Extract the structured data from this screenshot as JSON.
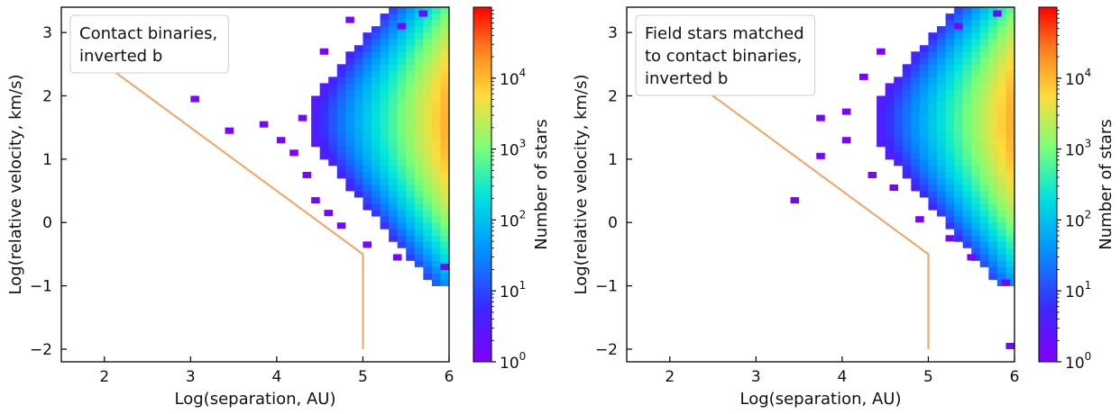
{
  "chart_data": [
    {
      "type": "heatmap",
      "legend_lines": [
        "Contact binaries,",
        "inverted b"
      ],
      "legend_position": "top-left",
      "xlabel": "Log(separation, AU)",
      "ylabel": "Log(relative velocity, km/s)",
      "xlim": [
        1.5,
        6.0
      ],
      "ylim": [
        -2.2,
        3.4
      ],
      "xticks": [
        "2",
        "3",
        "4",
        "5",
        "6"
      ],
      "yticks": [
        "−2",
        "−1",
        "0",
        "1",
        "2",
        "3"
      ],
      "xtick_values": [
        2,
        3,
        4,
        5,
        6
      ],
      "ytick_values": [
        -2,
        -1,
        0,
        1,
        2,
        3
      ],
      "threshold_line": {
        "x": [
          2.0,
          5.0,
          5.0
        ],
        "y": [
          2.5,
          -0.5,
          -2.0
        ],
        "color": "#f4a460"
      },
      "colorbar": {
        "label": "Number of stars",
        "scale": "log",
        "range": [
          1,
          100000
        ],
        "ticks": [
          {
            "value": 1,
            "base": "10",
            "exp": "0"
          },
          {
            "value": 10,
            "base": "10",
            "exp": "1"
          },
          {
            "value": 100,
            "base": "10",
            "exp": "2"
          },
          {
            "value": 1000,
            "base": "10",
            "exp": "3"
          },
          {
            "value": 10000,
            "base": "10",
            "exp": "4"
          }
        ]
      },
      "outliers": [
        [
          3.05,
          1.95
        ],
        [
          3.45,
          1.45
        ],
        [
          3.85,
          1.55
        ],
        [
          4.05,
          1.3
        ],
        [
          4.35,
          0.75
        ],
        [
          4.45,
          0.35
        ],
        [
          4.6,
          0.15
        ],
        [
          4.75,
          -0.05
        ],
        [
          5.05,
          -0.35
        ],
        [
          5.4,
          -0.55
        ],
        [
          5.95,
          -0.7
        ],
        [
          4.2,
          1.1
        ],
        [
          4.3,
          1.65
        ],
        [
          4.55,
          2.7
        ],
        [
          4.85,
          3.2
        ],
        [
          5.45,
          3.1
        ],
        [
          5.7,
          3.3
        ]
      ]
    },
    {
      "type": "heatmap",
      "legend_lines": [
        "Field stars matched",
        "to contact binaries,",
        "inverted b"
      ],
      "legend_position": "top-left",
      "xlabel": "Log(separation, AU)",
      "ylabel": "Log(relative velocity, km/s)",
      "xlim": [
        1.5,
        6.0
      ],
      "ylim": [
        -2.2,
        3.4
      ],
      "xticks": [
        "2",
        "3",
        "4",
        "5",
        "6"
      ],
      "yticks": [
        "−2",
        "−1",
        "0",
        "1",
        "2",
        "3"
      ],
      "xtick_values": [
        2,
        3,
        4,
        5,
        6
      ],
      "ytick_values": [
        -2,
        -1,
        0,
        1,
        2,
        3
      ],
      "threshold_line": {
        "x": [
          2.0,
          5.0,
          5.0
        ],
        "y": [
          2.5,
          -0.5,
          -2.0
        ],
        "color": "#f4a460"
      },
      "colorbar": {
        "label": "Number of stars",
        "scale": "log",
        "range": [
          1,
          100000
        ],
        "ticks": [
          {
            "value": 1,
            "base": "10",
            "exp": "0"
          },
          {
            "value": 10,
            "base": "10",
            "exp": "1"
          },
          {
            "value": 100,
            "base": "10",
            "exp": "2"
          },
          {
            "value": 1000,
            "base": "10",
            "exp": "3"
          },
          {
            "value": 10000,
            "base": "10",
            "exp": "4"
          }
        ]
      },
      "outliers": [
        [
          3.45,
          0.35
        ],
        [
          3.75,
          1.65
        ],
        [
          3.75,
          1.05
        ],
        [
          4.05,
          1.75
        ],
        [
          4.05,
          1.3
        ],
        [
          4.35,
          0.75
        ],
        [
          4.6,
          0.55
        ],
        [
          4.9,
          0.05
        ],
        [
          5.25,
          -0.25
        ],
        [
          5.5,
          -0.55
        ],
        [
          5.9,
          -0.95
        ],
        [
          5.95,
          -1.95
        ],
        [
          4.25,
          2.3
        ],
        [
          4.45,
          2.7
        ],
        [
          5.35,
          3.1
        ],
        [
          5.8,
          3.3
        ]
      ]
    }
  ]
}
